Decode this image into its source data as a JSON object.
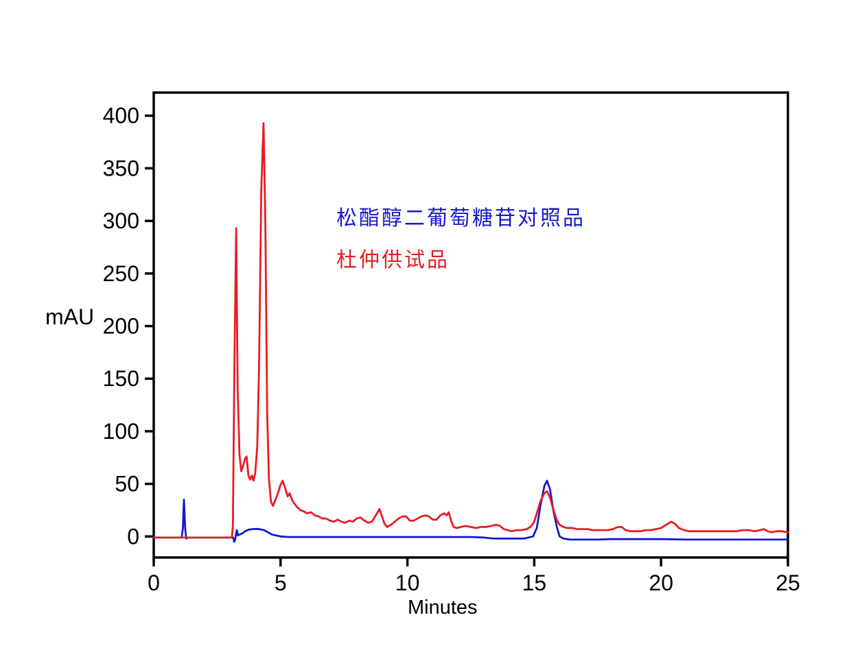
{
  "figure": {
    "background_color": "#ffffff",
    "plot_border_color": "#000000"
  },
  "chart_data": {
    "type": "line",
    "title": "",
    "xlabel": "Minutes",
    "ylabel": "mAU",
    "xlim": [
      0,
      25
    ],
    "ylim": [
      -20,
      422
    ],
    "xticks": [
      0,
      5,
      10,
      15,
      20,
      25
    ],
    "yticks": [
      0,
      50,
      100,
      150,
      200,
      250,
      300,
      350,
      400
    ],
    "grid": false,
    "legend_position": "inside-top-left-text-annotations",
    "annotations": [
      {
        "text": "松酯醇二葡萄糖苷对照品",
        "color": "#1717cf",
        "x_min": 7.2,
        "y_mau": 310
      },
      {
        "text": "杜仲供试品",
        "color": "#e81c22",
        "x_min": 7.2,
        "y_mau": 268
      }
    ],
    "series": [
      {
        "name": "松酯醇二葡萄糖苷对照品",
        "color": "#1717cf",
        "peaks_of_interest": [
          {
            "t_min": 1.19,
            "mAU": 35
          },
          {
            "t_min": 15.5,
            "mAU": 53
          }
        ],
        "points": [
          [
            0,
            -1
          ],
          [
            0.6,
            -1
          ],
          [
            1.0,
            -1
          ],
          [
            1.1,
            -1
          ],
          [
            1.15,
            8
          ],
          [
            1.19,
            35
          ],
          [
            1.24,
            8
          ],
          [
            1.28,
            -2
          ],
          [
            1.35,
            -1
          ],
          [
            1.7,
            -1
          ],
          [
            2.1,
            -1
          ],
          [
            2.5,
            -1
          ],
          [
            2.9,
            -1
          ],
          [
            3.05,
            -1
          ],
          [
            3.13,
            -1
          ],
          [
            3.17,
            -5
          ],
          [
            3.21,
            -3
          ],
          [
            3.25,
            3
          ],
          [
            3.28,
            6
          ],
          [
            3.32,
            1
          ],
          [
            3.4,
            2
          ],
          [
            3.5,
            3
          ],
          [
            3.6,
            5
          ],
          [
            3.75,
            6.5
          ],
          [
            3.9,
            7
          ],
          [
            4.05,
            7.2
          ],
          [
            4.2,
            6.8
          ],
          [
            4.35,
            6
          ],
          [
            4.5,
            4
          ],
          [
            4.65,
            2
          ],
          [
            4.8,
            1
          ],
          [
            5.0,
            0
          ],
          [
            5.3,
            -0.5
          ],
          [
            6,
            -0.5
          ],
          [
            7,
            -0.5
          ],
          [
            8,
            -0.5
          ],
          [
            9,
            -0.5
          ],
          [
            10,
            -0.5
          ],
          [
            11,
            -0.5
          ],
          [
            12,
            -0.5
          ],
          [
            12.5,
            -0.5
          ],
          [
            13.0,
            -1
          ],
          [
            13.4,
            -2
          ],
          [
            14,
            -2
          ],
          [
            14.6,
            -2
          ],
          [
            14.95,
            0
          ],
          [
            15.1,
            8
          ],
          [
            15.25,
            30
          ],
          [
            15.4,
            48
          ],
          [
            15.5,
            53
          ],
          [
            15.62,
            45
          ],
          [
            15.75,
            25
          ],
          [
            15.9,
            8
          ],
          [
            16.0,
            0
          ],
          [
            16.15,
            -2
          ],
          [
            16.4,
            -3
          ],
          [
            17,
            -3
          ],
          [
            17.5,
            -3
          ],
          [
            18,
            -2.5
          ],
          [
            19,
            -2.5
          ],
          [
            20,
            -2.5
          ],
          [
            21,
            -3
          ],
          [
            22,
            -3
          ],
          [
            23,
            -3
          ],
          [
            24,
            -3
          ],
          [
            25,
            -3
          ]
        ]
      },
      {
        "name": "杜仲供试品",
        "color": "#e81c22",
        "peaks_of_interest": [
          {
            "t_min": 3.25,
            "mAU": 293
          },
          {
            "t_min": 4.33,
            "mAU": 393
          },
          {
            "t_min": 5.08,
            "mAU": 53
          },
          {
            "t_min": 8.9,
            "mAU": 26
          },
          {
            "t_min": 11.63,
            "mAU": 23
          },
          {
            "t_min": 15.5,
            "mAU": 43
          },
          {
            "t_min": 20.4,
            "mAU": 14
          }
        ],
        "points": [
          [
            0,
            -1
          ],
          [
            0.6,
            -1
          ],
          [
            1.2,
            -1
          ],
          [
            1.8,
            -1
          ],
          [
            2.4,
            -1
          ],
          [
            2.8,
            -1
          ],
          [
            3.0,
            -1
          ],
          [
            3.08,
            -1
          ],
          [
            3.12,
            10
          ],
          [
            3.18,
            160
          ],
          [
            3.25,
            293
          ],
          [
            3.31,
            140
          ],
          [
            3.38,
            78
          ],
          [
            3.45,
            62
          ],
          [
            3.52,
            67
          ],
          [
            3.6,
            74
          ],
          [
            3.66,
            76
          ],
          [
            3.73,
            58
          ],
          [
            3.8,
            54
          ],
          [
            3.87,
            58
          ],
          [
            3.93,
            53
          ],
          [
            4.0,
            60
          ],
          [
            4.08,
            85
          ],
          [
            4.15,
            160
          ],
          [
            4.24,
            330
          ],
          [
            4.33,
            393
          ],
          [
            4.4,
            300
          ],
          [
            4.47,
            120
          ],
          [
            4.54,
            55
          ],
          [
            4.62,
            33
          ],
          [
            4.7,
            29
          ],
          [
            4.78,
            34
          ],
          [
            4.88,
            40
          ],
          [
            4.98,
            48
          ],
          [
            5.08,
            53
          ],
          [
            5.18,
            46
          ],
          [
            5.28,
            38
          ],
          [
            5.36,
            41
          ],
          [
            5.45,
            35
          ],
          [
            5.55,
            31
          ],
          [
            5.65,
            28
          ],
          [
            5.78,
            25
          ],
          [
            5.9,
            24
          ],
          [
            6.05,
            22
          ],
          [
            6.2,
            23
          ],
          [
            6.35,
            20
          ],
          [
            6.5,
            19
          ],
          [
            6.65,
            17
          ],
          [
            6.8,
            17
          ],
          [
            6.95,
            15
          ],
          [
            7.1,
            14
          ],
          [
            7.25,
            16
          ],
          [
            7.4,
            14
          ],
          [
            7.55,
            13
          ],
          [
            7.7,
            15
          ],
          [
            7.85,
            14
          ],
          [
            8.0,
            17
          ],
          [
            8.15,
            18
          ],
          [
            8.3,
            15
          ],
          [
            8.45,
            13
          ],
          [
            8.6,
            14
          ],
          [
            8.75,
            20
          ],
          [
            8.9,
            26
          ],
          [
            9.0,
            19
          ],
          [
            9.1,
            12
          ],
          [
            9.2,
            9
          ],
          [
            9.35,
            11
          ],
          [
            9.5,
            14
          ],
          [
            9.65,
            17
          ],
          [
            9.8,
            19
          ],
          [
            9.95,
            19
          ],
          [
            10.1,
            15
          ],
          [
            10.25,
            15
          ],
          [
            10.4,
            17
          ],
          [
            10.55,
            19
          ],
          [
            10.7,
            20
          ],
          [
            10.85,
            19
          ],
          [
            11.0,
            16
          ],
          [
            11.15,
            16
          ],
          [
            11.3,
            20
          ],
          [
            11.45,
            22
          ],
          [
            11.55,
            20
          ],
          [
            11.63,
            23
          ],
          [
            11.72,
            15
          ],
          [
            11.82,
            9
          ],
          [
            11.95,
            8
          ],
          [
            12.1,
            9
          ],
          [
            12.3,
            10
          ],
          [
            12.5,
            9
          ],
          [
            12.7,
            8
          ],
          [
            12.9,
            9
          ],
          [
            13.1,
            9
          ],
          [
            13.3,
            10
          ],
          [
            13.5,
            11
          ],
          [
            13.65,
            10
          ],
          [
            13.8,
            7
          ],
          [
            13.95,
            6
          ],
          [
            14.1,
            5
          ],
          [
            14.3,
            6
          ],
          [
            14.5,
            6
          ],
          [
            14.7,
            7
          ],
          [
            14.85,
            9
          ],
          [
            15.0,
            14
          ],
          [
            15.1,
            22
          ],
          [
            15.25,
            34
          ],
          [
            15.4,
            41
          ],
          [
            15.5,
            43
          ],
          [
            15.62,
            37
          ],
          [
            15.75,
            26
          ],
          [
            15.88,
            16
          ],
          [
            16.0,
            11
          ],
          [
            16.15,
            9
          ],
          [
            16.3,
            8
          ],
          [
            16.5,
            8
          ],
          [
            16.7,
            7
          ],
          [
            16.9,
            7
          ],
          [
            17.1,
            7
          ],
          [
            17.3,
            6
          ],
          [
            17.5,
            6
          ],
          [
            17.7,
            6
          ],
          [
            17.9,
            6
          ],
          [
            18.1,
            7
          ],
          [
            18.3,
            9
          ],
          [
            18.45,
            9
          ],
          [
            18.6,
            6
          ],
          [
            18.8,
            5
          ],
          [
            19.0,
            5
          ],
          [
            19.2,
            5
          ],
          [
            19.4,
            6
          ],
          [
            19.6,
            6
          ],
          [
            19.8,
            7
          ],
          [
            20.0,
            8
          ],
          [
            20.2,
            11
          ],
          [
            20.4,
            14
          ],
          [
            20.55,
            12
          ],
          [
            20.7,
            8
          ],
          [
            20.9,
            6
          ],
          [
            21.1,
            5
          ],
          [
            21.35,
            5
          ],
          [
            21.6,
            5
          ],
          [
            21.85,
            5
          ],
          [
            22.1,
            5
          ],
          [
            22.4,
            5
          ],
          [
            22.7,
            5
          ],
          [
            23.0,
            5
          ],
          [
            23.2,
            6
          ],
          [
            23.45,
            6
          ],
          [
            23.7,
            5
          ],
          [
            23.9,
            6
          ],
          [
            24.05,
            7
          ],
          [
            24.2,
            5
          ],
          [
            24.35,
            4
          ],
          [
            24.55,
            5
          ],
          [
            24.75,
            5
          ],
          [
            25,
            4
          ]
        ]
      }
    ]
  }
}
